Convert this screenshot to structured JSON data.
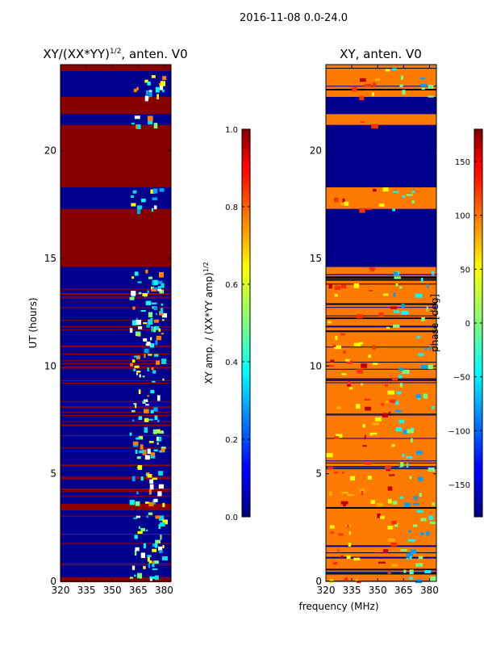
{
  "suptitle": "2016-11-08 0.0-24.0",
  "chart_data": [
    {
      "type": "heatmap",
      "title": "XY/(XX*YY)$^{1/2}$, anten. V0",
      "title_main": "XY/(XX*YY)",
      "title_sup": "1/2",
      "title_tail": ", anten. V0",
      "xlabel": "",
      "ylabel": "UT (hours)",
      "xlim": [
        320,
        384
      ],
      "ylim": [
        0,
        24
      ],
      "xticks": [
        320,
        335,
        350,
        365,
        380
      ],
      "yticks": [
        0,
        5,
        10,
        15,
        20
      ],
      "colorbar": {
        "label": "XY amp. / (XX*YY amp)$^{1/2}$",
        "label_main": "XY amp. / (XX*YY amp)",
        "label_sup": "1/2",
        "range": [
          0.0,
          1.0
        ],
        "ticks": [
          "0.0",
          "0.2",
          "0.4",
          "0.6",
          "0.8",
          "1.0"
        ],
        "colormap": "jet"
      },
      "description_values": {
        "background": 0.05,
        "saturated_rows_hours": [
          [
            14.6,
            17.3
          ],
          [
            18.3,
            21.2
          ],
          [
            21.7,
            22.5
          ],
          [
            23.7,
            24.0
          ],
          [
            0.0,
            0.2
          ],
          [
            3.3,
            3.6
          ],
          [
            7.2,
            7.3
          ]
        ],
        "active_band_mhz": [
          360,
          381
        ]
      }
    },
    {
      "type": "heatmap",
      "title": "XY, anten. V0",
      "xlabel": "frequency (MHz)",
      "ylabel": "",
      "xlim": [
        320,
        384
      ],
      "ylim": [
        0,
        24
      ],
      "xticks": [
        320,
        335,
        350,
        365,
        380
      ],
      "yticks": [
        0,
        5,
        10,
        15,
        20
      ],
      "colorbar": {
        "label": "phase [deg]",
        "range": [
          -180,
          180
        ],
        "ticks": [
          "150",
          "100",
          "50",
          "0",
          "−50",
          "−100",
          "−150"
        ],
        "tick_values": [
          150,
          100,
          50,
          0,
          -50,
          -100,
          -150
        ],
        "colormap": "jet"
      },
      "description_values": {
        "dominant_phase_deg": 120,
        "empty_rows_hours": [
          [
            14.6,
            17.3
          ],
          [
            18.3,
            21.2
          ],
          [
            21.7,
            22.5
          ]
        ]
      }
    }
  ]
}
